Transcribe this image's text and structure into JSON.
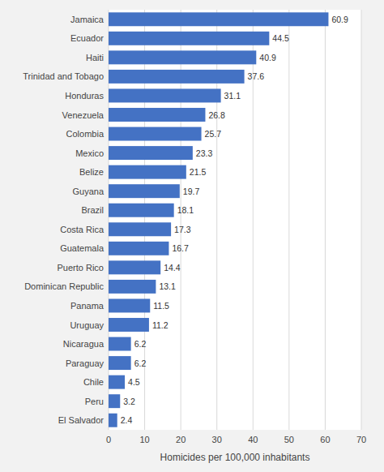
{
  "chart_data": {
    "type": "bar",
    "orientation": "horizontal",
    "categories": [
      "El Salvador",
      "Peru",
      "Chile",
      "Paraguay",
      "Nicaragua",
      "Uruguay",
      "Panama",
      "Dominican Republic",
      "Puerto Rico",
      "Guatemala",
      "Costa Rica",
      "Brazil",
      "Guyana",
      "Belize",
      "Mexico",
      "Colombia",
      "Venezuela",
      "Honduras",
      "Trinidad and Tobago",
      "Haiti",
      "Ecuador",
      "Jamaica"
    ],
    "values": [
      2.4,
      3.2,
      4.5,
      6.2,
      6.2,
      11.2,
      11.5,
      13.1,
      14.4,
      16.7,
      17.3,
      18.1,
      19.7,
      21.5,
      23.3,
      25.7,
      26.8,
      31.1,
      37.6,
      40.9,
      44.5,
      60.9
    ],
    "color": "#4472c4",
    "xlabel": "Homicides per 100,000 inhabitants",
    "xlim": [
      0,
      70
    ],
    "xticks": [
      0,
      10,
      20,
      30,
      40,
      50,
      60,
      70
    ],
    "grid": true,
    "data_labels": true
  }
}
